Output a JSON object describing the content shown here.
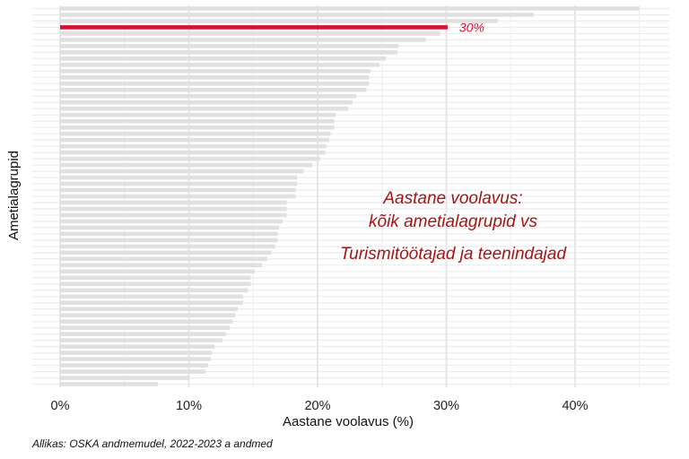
{
  "chart_data": {
    "type": "bar",
    "orientation": "horizontal",
    "y_axis_label": "Ametialagrupid",
    "x_axis_label": "Aastane voolavus (%)",
    "x_ticks": [
      "0%",
      "10%",
      "20%",
      "30%",
      "40%"
    ],
    "xlim": [
      0,
      47
    ],
    "highlight": {
      "value": 30.1,
      "label": "30%",
      "color": "#d6102f"
    },
    "bar_color": "#e0e0e0",
    "grid_color": "#ebebeb",
    "annotation_lines": [
      "Aastane voolavus:",
      "kõik ametialagrupid vs",
      "Turismitöötajad ja teenindajad"
    ],
    "annotation_color": "#a31515",
    "caption": "Allikas: OSKA andmemudel, 2022-2023 a andmed",
    "values": [
      45.0,
      36.8,
      34.0,
      30.1,
      29.5,
      28.4,
      26.3,
      26.2,
      25.3,
      24.8,
      24.1,
      24.0,
      24.0,
      23.8,
      23.0,
      22.7,
      22.4,
      21.4,
      21.3,
      21.3,
      21.0,
      20.9,
      20.7,
      20.6,
      20.2,
      19.6,
      18.9,
      18.4,
      18.4,
      18.3,
      18.3,
      17.6,
      17.6,
      17.6,
      17.3,
      17.0,
      16.9,
      16.9,
      16.7,
      16.4,
      16.1,
      15.7,
      15.1,
      14.8,
      14.8,
      14.6,
      14.2,
      14.2,
      13.8,
      13.6,
      13.4,
      13.2,
      12.9,
      12.6,
      12.0,
      11.8,
      11.7,
      11.5,
      11.3,
      10.0,
      7.6
    ]
  }
}
